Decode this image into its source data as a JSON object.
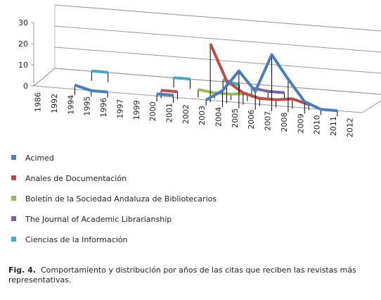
{
  "chart_data": {
    "type": "line3d",
    "categories": [
      "1986",
      "1992",
      "1994",
      "1995",
      "1996",
      "1997",
      "1999",
      "2000",
      "2001",
      "2002",
      "2003",
      "2004",
      "2005",
      "2006",
      "2007",
      "2008",
      "2009",
      "2010",
      "2011",
      "2012"
    ],
    "ylim": [
      0,
      30
    ],
    "yticks": [
      0,
      10,
      20,
      30
    ],
    "grid": true,
    "series": [
      {
        "name": "Acimed",
        "color": "#4a7ebb",
        "values": [
          null,
          null,
          2,
          0,
          0,
          null,
          null,
          1,
          1,
          null,
          0,
          5,
          15,
          6,
          24,
          13,
          3,
          0,
          0,
          null
        ]
      },
      {
        "name": "Anales de Documentación",
        "color": "#be4b48",
        "values": [
          null,
          null,
          null,
          null,
          null,
          null,
          null,
          1,
          1,
          null,
          25,
          8,
          3,
          1,
          1,
          2,
          0,
          null,
          null,
          null
        ]
      },
      {
        "name": "Boletín de la Sociedad Andaluza de Bibliotecarios",
        "color": "#98b954",
        "values": [
          null,
          null,
          null,
          null,
          null,
          null,
          null,
          null,
          null,
          1,
          0,
          0,
          1,
          null,
          null,
          null,
          null,
          null,
          null,
          null
        ]
      },
      {
        "name": "The Journal of Academic Librarianship",
        "color": "#7d60a0",
        "values": [
          null,
          null,
          null,
          null,
          null,
          null,
          null,
          null,
          null,
          null,
          null,
          null,
          2,
          1,
          1,
          null,
          null,
          null,
          null,
          null
        ]
      },
      {
        "name": "Ciencias de la Información",
        "color": "#46aac5",
        "values": [
          null,
          null,
          2,
          2,
          null,
          null,
          null,
          2,
          2,
          null,
          3,
          1,
          null,
          null,
          null,
          null,
          null,
          null,
          null,
          null
        ]
      }
    ]
  },
  "caption": {
    "label": "Fig. 4.",
    "text": "Comportamiento y distribución por años de las citas que reciben las revistas más representativas."
  }
}
